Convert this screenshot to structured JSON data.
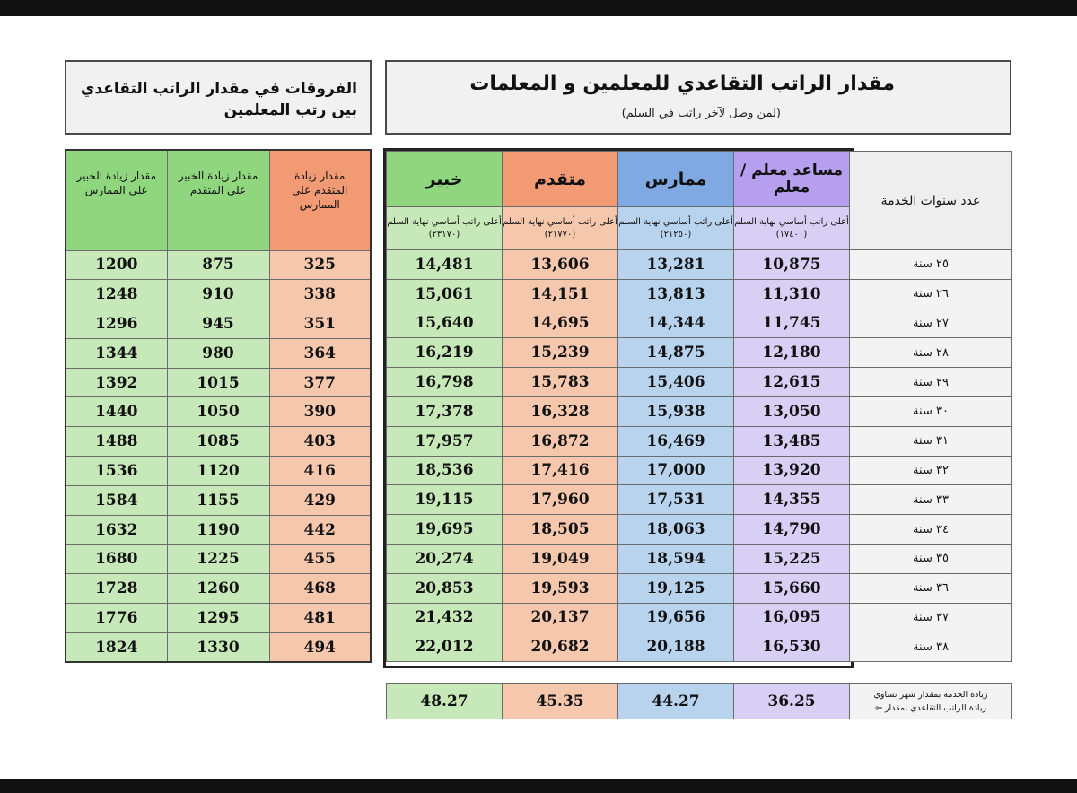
{
  "main_header": {
    "title": "مقدار الراتب التقاعدي للمعلمين و المعلمات",
    "subtitle": "(لمن وصل لآخر راتب في السلم)"
  },
  "diff_header": {
    "title": "الفروقات في مقدار الراتب التقاعدي بين رتب المعلمين"
  },
  "years_header": "عدد سنوات الخدمة",
  "ranks": [
    {
      "name": "مساعد معلم / معلم",
      "sub": "أعلى راتب أساسي نهاية السلم (١٧٤٠٠)",
      "color": "#b79ff0"
    },
    {
      "name": "ممارس",
      "sub": "أعلى راتب أساسي نهاية السلم (٢١٢٥٠)",
      "color": "#7ea9e2"
    },
    {
      "name": "متقدم",
      "sub": "أعلى راتب أساسي نهاية السلم (٢١٧٧٠)",
      "color": "#f19a74"
    },
    {
      "name": "خبير",
      "sub": "أعلى راتب أساسي نهاية السلم (٢٣١٧٠)",
      "color": "#8fd67e"
    }
  ],
  "diff_columns": [
    {
      "label": "مقدار زيادة المتقدم على الممارس"
    },
    {
      "label": "مقدار زيادة الخبير على المتقدم"
    },
    {
      "label": "مقدار زيادة الخبير على الممارس"
    }
  ],
  "rows": [
    {
      "years": "٢٥ سنة",
      "values": [
        "10,875",
        "13,281",
        "13,606",
        "14,481"
      ],
      "diffs": [
        "325",
        "875",
        "1200"
      ]
    },
    {
      "years": "٢٦ سنة",
      "values": [
        "11,310",
        "13,813",
        "14,151",
        "15,061"
      ],
      "diffs": [
        "338",
        "910",
        "1248"
      ]
    },
    {
      "years": "٢٧ سنة",
      "values": [
        "11,745",
        "14,344",
        "14,695",
        "15,640"
      ],
      "diffs": [
        "351",
        "945",
        "1296"
      ]
    },
    {
      "years": "٢٨ سنة",
      "values": [
        "12,180",
        "14,875",
        "15,239",
        "16,219"
      ],
      "diffs": [
        "364",
        "980",
        "1344"
      ]
    },
    {
      "years": "٢٩ سنة",
      "values": [
        "12,615",
        "15,406",
        "15,783",
        "16,798"
      ],
      "diffs": [
        "377",
        "1015",
        "1392"
      ]
    },
    {
      "years": "٣٠ سنة",
      "values": [
        "13,050",
        "15,938",
        "16,328",
        "17,378"
      ],
      "diffs": [
        "390",
        "1050",
        "1440"
      ]
    },
    {
      "years": "٣١ سنة",
      "values": [
        "13,485",
        "16,469",
        "16,872",
        "17,957"
      ],
      "diffs": [
        "403",
        "1085",
        "1488"
      ]
    },
    {
      "years": "٣٢ سنة",
      "values": [
        "13,920",
        "17,000",
        "17,416",
        "18,536"
      ],
      "diffs": [
        "416",
        "1120",
        "1536"
      ]
    },
    {
      "years": "٣٣ سنة",
      "values": [
        "14,355",
        "17,531",
        "17,960",
        "19,115"
      ],
      "diffs": [
        "429",
        "1155",
        "1584"
      ]
    },
    {
      "years": "٣٤ سنة",
      "values": [
        "14,790",
        "18,063",
        "18,505",
        "19,695"
      ],
      "diffs": [
        "442",
        "1190",
        "1632"
      ]
    },
    {
      "years": "٣٥ سنة",
      "values": [
        "15,225",
        "18,594",
        "19,049",
        "20,274"
      ],
      "diffs": [
        "455",
        "1225",
        "1680"
      ]
    },
    {
      "years": "٣٦ سنة",
      "values": [
        "15,660",
        "19,125",
        "19,593",
        "20,853"
      ],
      "diffs": [
        "468",
        "1260",
        "1728"
      ]
    },
    {
      "years": "٣٧ سنة",
      "values": [
        "16,095",
        "19,656",
        "20,137",
        "21,432"
      ],
      "diffs": [
        "481",
        "1295",
        "1776"
      ]
    },
    {
      "years": "٣٨ سنة",
      "values": [
        "16,530",
        "20,188",
        "20,682",
        "22,012"
      ],
      "diffs": [
        "494",
        "1330",
        "1824"
      ]
    }
  ],
  "increment": {
    "note_line1": "زيادة الخدمة بمقدار شهر تساوي",
    "note_line2": "زيادة الراتب التقاعدي بمقدار ⇦",
    "values": [
      "36.25",
      "44.27",
      "45.35",
      "48.27"
    ]
  }
}
